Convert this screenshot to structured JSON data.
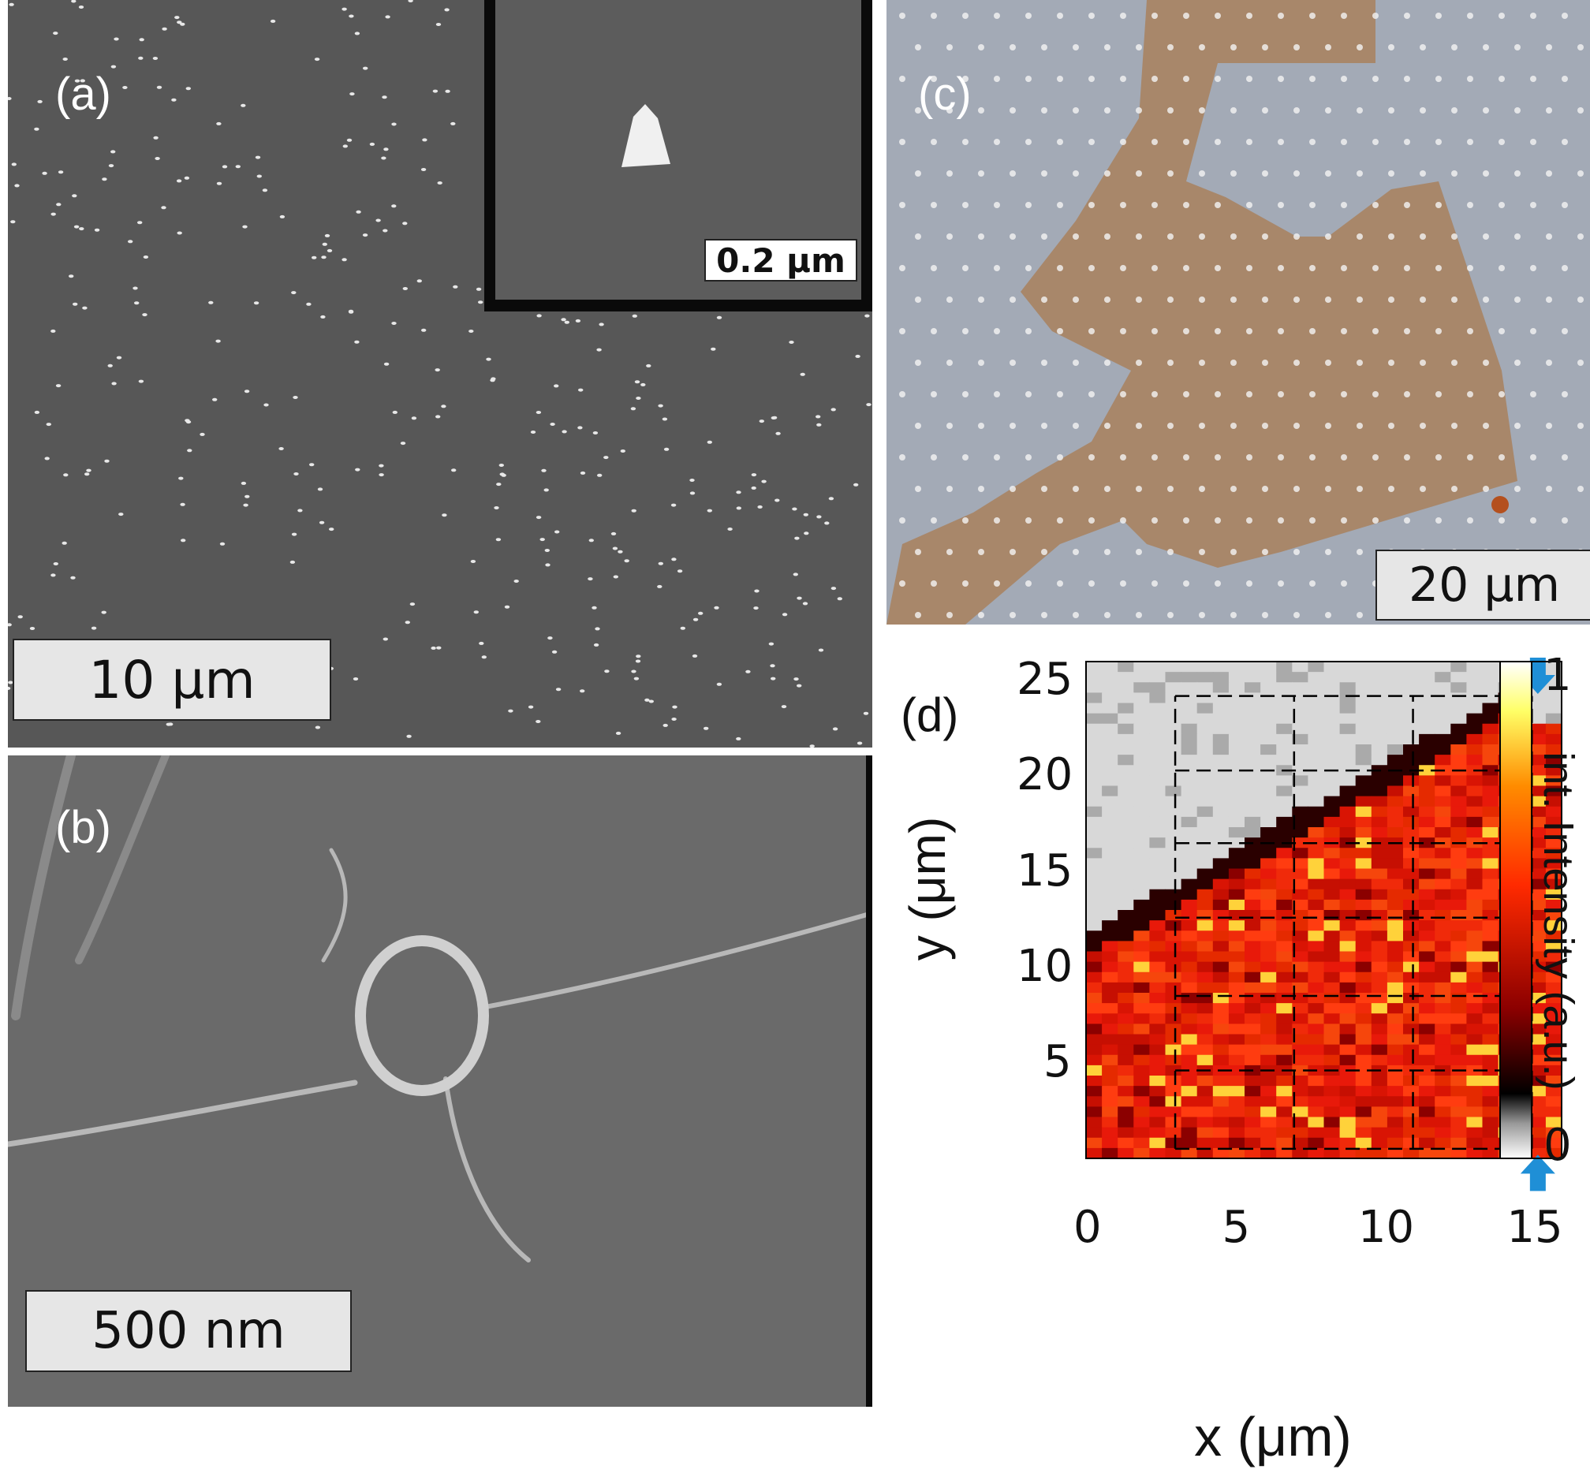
{
  "panels": {
    "a": {
      "label": "(a)",
      "scalebar": "10 μm",
      "inset_scalebar": "0.2 μm"
    },
    "b": {
      "label": "(b)",
      "scalebar": "500 nm"
    },
    "c": {
      "label": "(c)",
      "scalebar": "20 μm"
    },
    "d": {
      "label": "(d)"
    }
  },
  "chart_data": {
    "type": "heatmap",
    "xlabel": "x (μm)",
    "ylabel": "y (μm)",
    "colorbar_label": "int. Intensity (a.u.)",
    "colorbar_ticks": [
      "1",
      "0"
    ],
    "x_ticks": [
      "0",
      "5",
      "10",
      "15"
    ],
    "y_ticks": [
      "25",
      "20",
      "15",
      "10",
      "5"
    ],
    "xlim": [
      0,
      16
    ],
    "ylim": [
      0,
      26
    ],
    "grid_x": [
      3,
      7,
      11,
      15
    ],
    "grid_y": [
      0.5,
      4.6,
      8.5,
      12.6,
      16.5,
      20.3,
      24.2
    ],
    "colormap": [
      "#ffffff",
      "#999999",
      "#000000",
      "#8b0000",
      "#ff2a00",
      "#ff8c00",
      "#ffff66",
      "#ffffff"
    ],
    "arrow_color": "#1f8fd6",
    "arrows": [
      {
        "direction": "down",
        "x": 15.2,
        "y": 25.3
      },
      {
        "direction": "up",
        "x": 15.2,
        "y": -0.8
      }
    ]
  }
}
